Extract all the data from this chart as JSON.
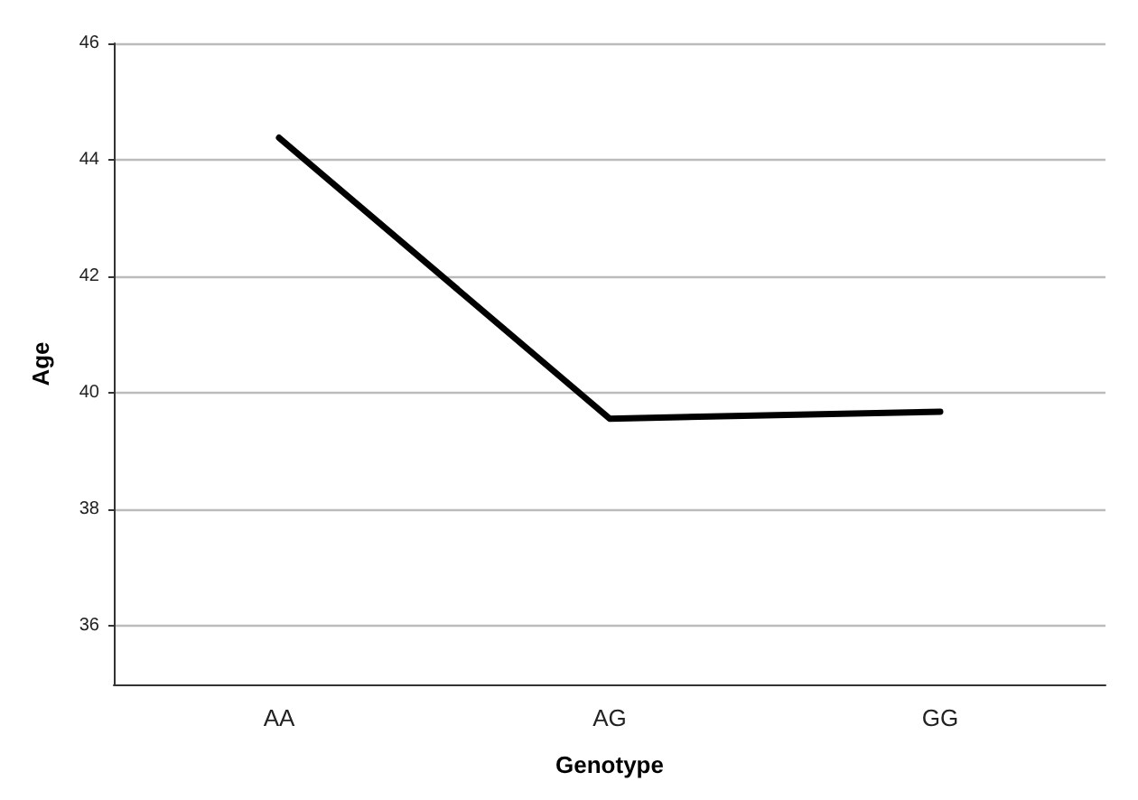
{
  "chart_data": {
    "type": "line",
    "xlabel": "Genotype",
    "ylabel": "Age",
    "categories": [
      "AA",
      "AG",
      "GG"
    ],
    "series": [
      {
        "color": "#000000",
        "values": [
          44.38,
          39.56,
          39.68
        ]
      }
    ],
    "ylim": [
      35,
      46
    ],
    "yticks": [
      36,
      38,
      40,
      42,
      44,
      46
    ],
    "grid": "y",
    "marker": "none",
    "line_style": "solid"
  }
}
